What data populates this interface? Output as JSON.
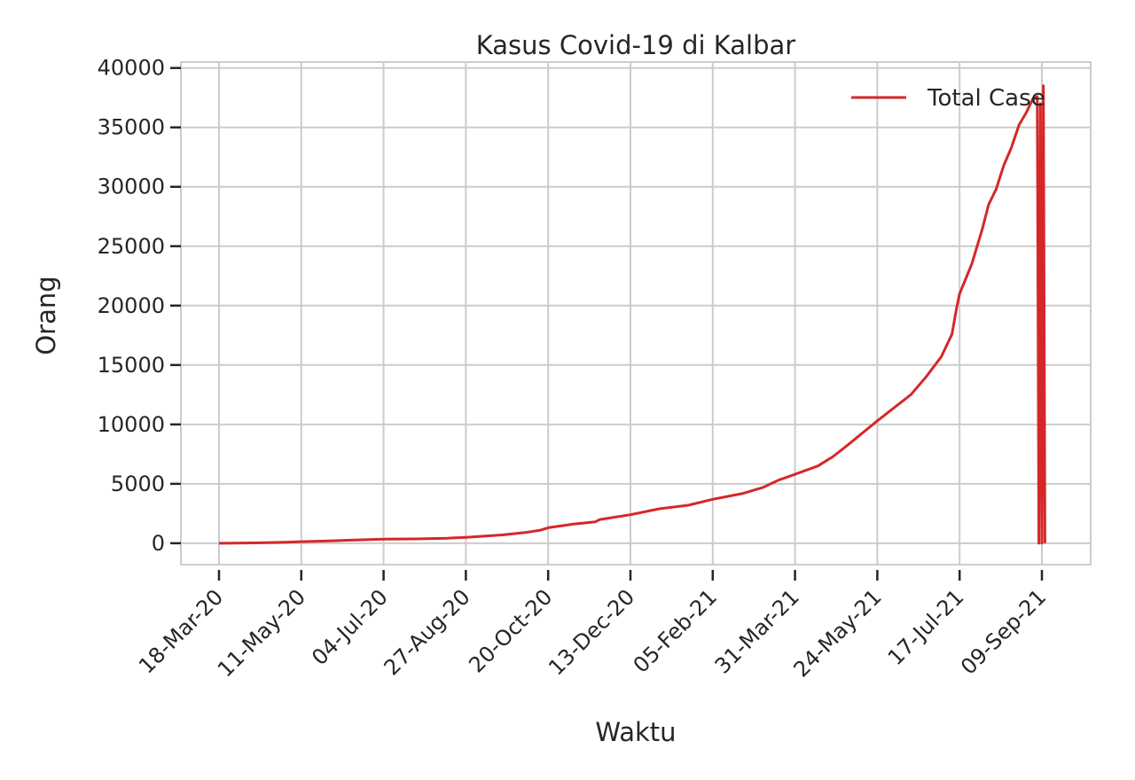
{
  "chart_data": {
    "type": "line",
    "title": "Kasus Covid-19 di Kalbar",
    "xlabel": "Waktu",
    "ylabel": "Orang",
    "x_tick_labels": [
      "18-Mar-20",
      "11-May-20",
      "04-Jul-20",
      "27-Aug-20",
      "20-Oct-20",
      "13-Dec-20",
      "05-Feb-21",
      "31-Mar-21",
      "24-May-21",
      "17-Jul-21",
      "09-Sep-21"
    ],
    "y_ticks": [
      0,
      5000,
      10000,
      15000,
      20000,
      25000,
      30000,
      35000,
      40000
    ],
    "y_tick_labels": [
      "0",
      "5000",
      "10000",
      "15000",
      "20000",
      "25000",
      "30000",
      "35000",
      "40000"
    ],
    "ylim": [
      -1800,
      40500
    ],
    "xlim": [
      "2020-02-22",
      "2021-10-11"
    ],
    "grid": true,
    "legend_position": "top-right",
    "series": [
      {
        "name": "Total Case",
        "color": "#d62728",
        "points": [
          [
            "2020-03-18",
            0
          ],
          [
            "2020-04-10",
            30
          ],
          [
            "2020-05-01",
            80
          ],
          [
            "2020-05-11",
            130
          ],
          [
            "2020-06-01",
            210
          ],
          [
            "2020-06-20",
            290
          ],
          [
            "2020-07-04",
            340
          ],
          [
            "2020-07-25",
            360
          ],
          [
            "2020-08-15",
            420
          ],
          [
            "2020-08-27",
            500
          ],
          [
            "2020-09-20",
            700
          ],
          [
            "2020-10-05",
            900
          ],
          [
            "2020-10-15",
            1100
          ],
          [
            "2020-10-20",
            1300
          ],
          [
            "2020-11-05",
            1600
          ],
          [
            "2020-11-20",
            1800
          ],
          [
            "2020-11-23",
            2000
          ],
          [
            "2020-12-13",
            2400
          ],
          [
            "2021-01-01",
            2900
          ],
          [
            "2021-01-20",
            3200
          ],
          [
            "2021-02-05",
            3700
          ],
          [
            "2021-02-25",
            4200
          ],
          [
            "2021-03-10",
            4700
          ],
          [
            "2021-03-20",
            5300
          ],
          [
            "2021-03-31",
            5800
          ],
          [
            "2021-04-15",
            6500
          ],
          [
            "2021-04-25",
            7300
          ],
          [
            "2021-05-05",
            8300
          ],
          [
            "2021-05-24",
            10300
          ],
          [
            "2021-06-05",
            11500
          ],
          [
            "2021-06-15",
            12500
          ],
          [
            "2021-06-25",
            14000
          ],
          [
            "2021-07-05",
            15700
          ],
          [
            "2021-07-12",
            17600
          ],
          [
            "2021-07-15",
            19800
          ],
          [
            "2021-07-17",
            21000
          ],
          [
            "2021-07-25",
            23500
          ],
          [
            "2021-08-01",
            26500
          ],
          [
            "2021-08-05",
            28500
          ],
          [
            "2021-08-10",
            29800
          ],
          [
            "2021-08-15",
            31800
          ],
          [
            "2021-08-20",
            33300
          ],
          [
            "2021-08-25",
            35200
          ],
          [
            "2021-08-30",
            36300
          ],
          [
            "2021-09-03",
            37400
          ],
          [
            "2021-09-06",
            37600
          ],
          [
            "2021-09-07",
            0
          ],
          [
            "2021-09-08",
            37000
          ],
          [
            "2021-09-09",
            0
          ],
          [
            "2021-09-10",
            38500
          ],
          [
            "2021-09-11",
            0
          ]
        ]
      }
    ]
  }
}
